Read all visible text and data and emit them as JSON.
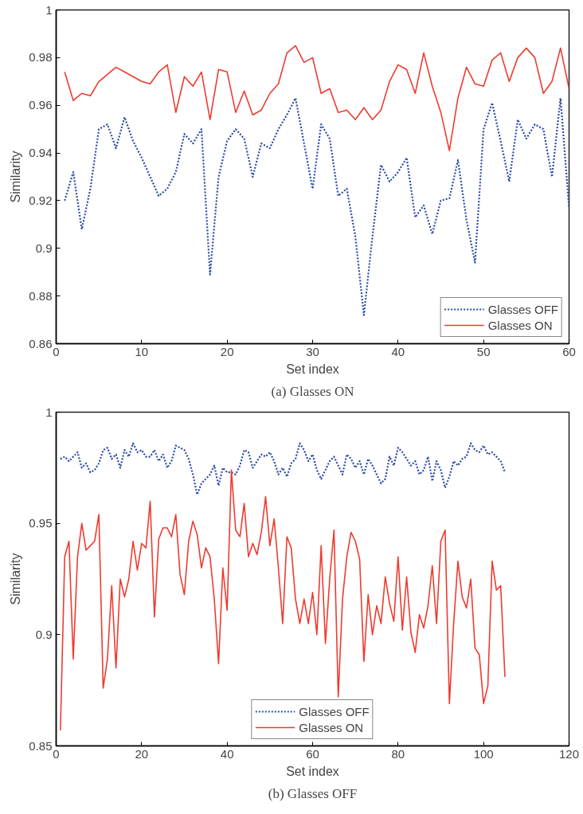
{
  "chart_data": [
    {
      "type": "line",
      "title": "(a) Glasses ON",
      "xlabel": "Set index",
      "ylabel": "Similarity",
      "xlim": [
        0,
        60
      ],
      "ylim": [
        0.86,
        1
      ],
      "xticks": [
        0,
        10,
        20,
        30,
        40,
        50,
        60
      ],
      "yticks": [
        0.86,
        0.88,
        0.9,
        0.92,
        0.94,
        0.96,
        0.98,
        1
      ],
      "legend": "bottom right",
      "x": [
        1,
        2,
        3,
        4,
        5,
        6,
        7,
        8,
        9,
        10,
        11,
        12,
        13,
        14,
        15,
        16,
        17,
        18,
        19,
        20,
        21,
        22,
        23,
        24,
        25,
        26,
        27,
        28,
        29,
        30,
        31,
        32,
        33,
        34,
        35,
        36,
        37,
        38,
        39,
        40,
        41,
        42,
        43,
        44,
        45,
        46,
        47,
        48,
        49,
        50,
        51,
        52,
        53,
        54,
        55,
        56,
        57,
        58,
        59,
        60
      ],
      "series": [
        {
          "name": "Glasses OFF",
          "color": "#2b4ba8",
          "line_style": "dotted",
          "values": [
            0.92,
            0.932,
            0.908,
            0.925,
            0.95,
            0.952,
            0.942,
            0.955,
            0.945,
            0.938,
            0.93,
            0.922,
            0.925,
            0.932,
            0.948,
            0.944,
            0.95,
            0.889,
            0.93,
            0.945,
            0.95,
            0.946,
            0.93,
            0.944,
            0.942,
            0.95,
            0.956,
            0.963,
            0.944,
            0.925,
            0.952,
            0.946,
            0.922,
            0.925,
            0.905,
            0.872,
            0.905,
            0.935,
            0.928,
            0.932,
            0.938,
            0.913,
            0.918,
            0.906,
            0.92,
            0.921,
            0.937,
            0.912,
            0.894,
            0.95,
            0.961,
            0.945,
            0.928,
            0.954,
            0.946,
            0.952,
            0.95,
            0.93,
            0.963,
            0.917
          ]
        },
        {
          "name": "Glasses ON",
          "color": "#ee3b2e",
          "line_style": "solid",
          "values": [
            0.974,
            0.962,
            0.965,
            0.964,
            0.97,
            0.973,
            0.976,
            0.974,
            0.972,
            0.97,
            0.969,
            0.974,
            0.977,
            0.957,
            0.972,
            0.968,
            0.974,
            0.954,
            0.975,
            0.974,
            0.957,
            0.966,
            0.956,
            0.958,
            0.965,
            0.969,
            0.982,
            0.985,
            0.978,
            0.98,
            0.965,
            0.967,
            0.957,
            0.958,
            0.954,
            0.959,
            0.954,
            0.958,
            0.97,
            0.977,
            0.975,
            0.965,
            0.982,
            0.968,
            0.957,
            0.941,
            0.963,
            0.976,
            0.969,
            0.968,
            0.979,
            0.982,
            0.97,
            0.98,
            0.984,
            0.98,
            0.965,
            0.97,
            0.984,
            0.967
          ]
        }
      ]
    },
    {
      "type": "line",
      "title": "(b) Glasses OFF",
      "xlabel": "Set index",
      "ylabel": "Similarity",
      "xlim": [
        0,
        120
      ],
      "ylim": [
        0.85,
        1
      ],
      "xticks": [
        0,
        20,
        40,
        60,
        80,
        100,
        120
      ],
      "yticks": [
        0.85,
        0.9,
        0.95,
        1
      ],
      "legend": "bottom",
      "x": [
        1,
        2,
        3,
        4,
        5,
        6,
        7,
        8,
        9,
        10,
        11,
        12,
        13,
        14,
        15,
        16,
        17,
        18,
        19,
        20,
        21,
        22,
        23,
        24,
        25,
        26,
        27,
        28,
        29,
        30,
        31,
        32,
        33,
        34,
        35,
        36,
        37,
        38,
        39,
        40,
        41,
        42,
        43,
        44,
        45,
        46,
        47,
        48,
        49,
        50,
        51,
        52,
        53,
        54,
        55,
        56,
        57,
        58,
        59,
        60,
        61,
        62,
        63,
        64,
        65,
        66,
        67,
        68,
        69,
        70,
        71,
        72,
        73,
        74,
        75,
        76,
        77,
        78,
        79,
        80,
        81,
        82,
        83,
        84,
        85,
        86,
        87,
        88,
        89,
        90,
        91,
        92,
        93,
        94,
        95,
        96,
        97,
        98,
        99,
        100,
        101,
        102,
        103,
        104,
        105
      ],
      "series": [
        {
          "name": "Glasses OFF",
          "color": "#2b4ba8",
          "line_style": "dotted",
          "values": [
            0.979,
            0.98,
            0.978,
            0.98,
            0.982,
            0.975,
            0.977,
            0.973,
            0.974,
            0.977,
            0.983,
            0.984,
            0.979,
            0.981,
            0.975,
            0.983,
            0.98,
            0.986,
            0.982,
            0.983,
            0.98,
            0.98,
            0.983,
            0.978,
            0.981,
            0.975,
            0.978,
            0.985,
            0.984,
            0.983,
            0.979,
            0.972,
            0.963,
            0.968,
            0.97,
            0.972,
            0.976,
            0.967,
            0.975,
            0.973,
            0.973,
            0.972,
            0.976,
            0.983,
            0.982,
            0.975,
            0.978,
            0.981,
            0.98,
            0.982,
            0.978,
            0.972,
            0.975,
            0.971,
            0.977,
            0.979,
            0.986,
            0.983,
            0.978,
            0.981,
            0.974,
            0.97,
            0.974,
            0.978,
            0.98,
            0.976,
            0.972,
            0.981,
            0.979,
            0.975,
            0.978,
            0.972,
            0.979,
            0.976,
            0.972,
            0.968,
            0.97,
            0.98,
            0.976,
            0.984,
            0.982,
            0.979,
            0.976,
            0.978,
            0.972,
            0.974,
            0.98,
            0.969,
            0.978,
            0.974,
            0.966,
            0.971,
            0.978,
            0.976,
            0.979,
            0.98,
            0.986,
            0.983,
            0.982,
            0.985,
            0.981,
            0.982,
            0.98,
            0.978,
            0.973
          ]
        },
        {
          "name": "Glasses ON",
          "color": "#ee3b2e",
          "line_style": "solid",
          "values": [
            0.857,
            0.935,
            0.942,
            0.889,
            0.935,
            0.95,
            0.938,
            0.94,
            0.942,
            0.954,
            0.876,
            0.889,
            0.922,
            0.885,
            0.925,
            0.917,
            0.925,
            0.942,
            0.929,
            0.941,
            0.939,
            0.96,
            0.908,
            0.943,
            0.948,
            0.948,
            0.944,
            0.954,
            0.927,
            0.918,
            0.942,
            0.951,
            0.945,
            0.93,
            0.939,
            0.935,
            0.916,
            0.887,
            0.93,
            0.911,
            0.974,
            0.947,
            0.944,
            0.959,
            0.935,
            0.941,
            0.936,
            0.946,
            0.962,
            0.94,
            0.952,
            0.93,
            0.905,
            0.944,
            0.939,
            0.916,
            0.905,
            0.916,
            0.905,
            0.919,
            0.9,
            0.94,
            0.896,
            0.925,
            0.947,
            0.872,
            0.916,
            0.935,
            0.946,
            0.942,
            0.934,
            0.888,
            0.918,
            0.9,
            0.913,
            0.905,
            0.926,
            0.914,
            0.906,
            0.935,
            0.902,
            0.926,
            0.901,
            0.892,
            0.909,
            0.903,
            0.913,
            0.931,
            0.905,
            0.942,
            0.947,
            0.869,
            0.905,
            0.933,
            0.917,
            0.912,
            0.925,
            0.894,
            0.891,
            0.869,
            0.877,
            0.933,
            0.92,
            0.922,
            0.881
          ]
        }
      ]
    }
  ]
}
